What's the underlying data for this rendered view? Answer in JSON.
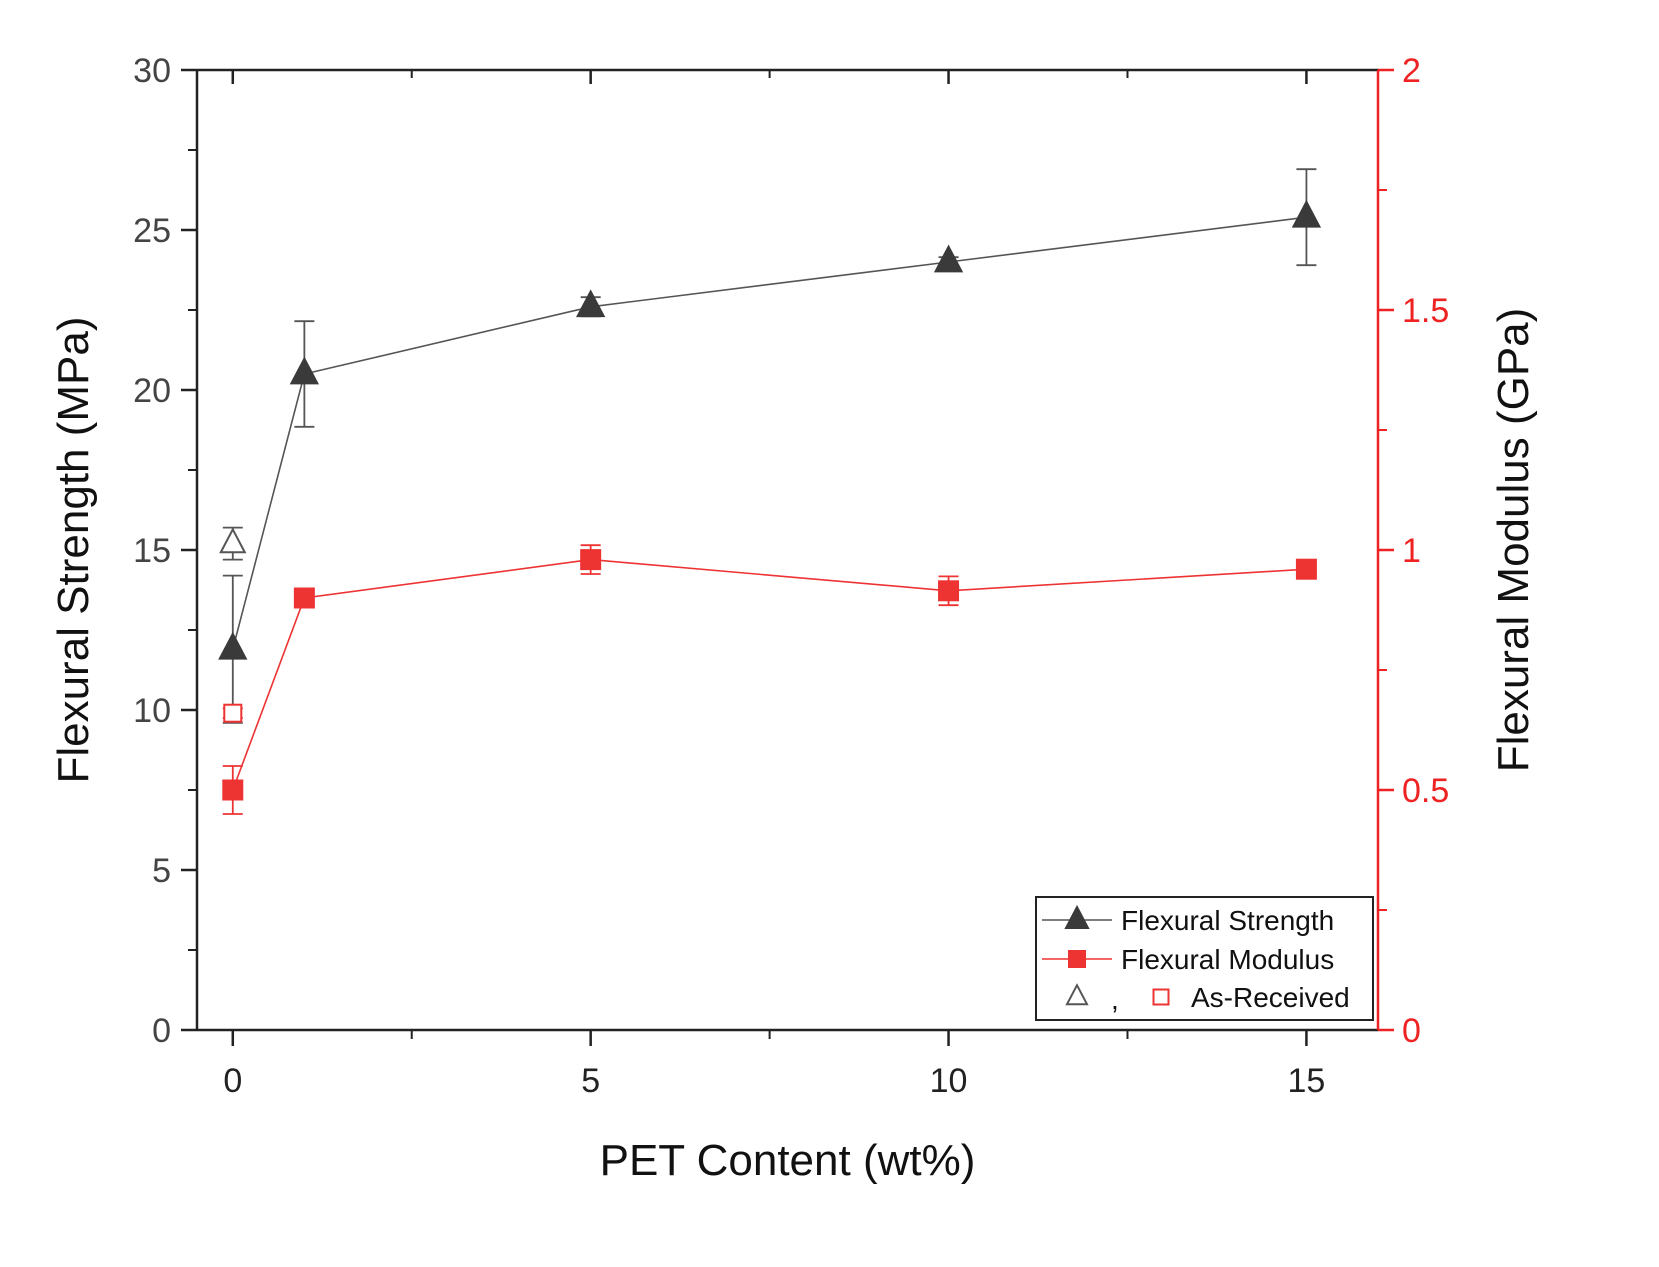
{
  "chart_data": {
    "type": "line",
    "title": "",
    "xlabel": "PET Content (wt%)",
    "ylabel_left": "Flexural Strength (MPa)",
    "ylabel_right": "Flexural Modulus (GPa)",
    "xlim": [
      -0.5,
      16
    ],
    "ylim_left": [
      0,
      30
    ],
    "ylim_right": [
      0,
      2
    ],
    "x_ticks": [
      0,
      5,
      10,
      15
    ],
    "x_tick_labels": [
      "0",
      "5",
      "10",
      "15"
    ],
    "x_minor_ticks": [
      2.5,
      7.5,
      12.5
    ],
    "y_left_ticks": [
      0,
      5,
      10,
      15,
      20,
      25,
      30
    ],
    "y_left_tick_labels": [
      "0",
      "5",
      "10",
      "15",
      "20",
      "25",
      "30"
    ],
    "y_right_ticks": [
      0,
      0.5,
      1,
      1.5,
      2
    ],
    "y_right_tick_labels": [
      "0",
      "0.5",
      "1",
      "1.5",
      "2"
    ],
    "series": [
      {
        "name": "Flexural Strength",
        "axis": "left",
        "marker": "triangle",
        "color": "#3a3a3a",
        "x": [
          0,
          1,
          5,
          10,
          15
        ],
        "y": [
          11.9,
          20.5,
          22.6,
          24.0,
          25.4
        ],
        "err": [
          2.3,
          1.65,
          0.3,
          0.15,
          1.5
        ]
      },
      {
        "name": "Flexural Modulus",
        "axis": "right",
        "marker": "square",
        "color": "#ee3333",
        "x": [
          0,
          1,
          5,
          10,
          15
        ],
        "y": [
          0.5,
          0.9,
          0.98,
          0.915,
          0.96
        ],
        "err": [
          0.05,
          0.02,
          0.03,
          0.03,
          0.01
        ]
      }
    ],
    "as_received": {
      "strength": {
        "x": 0,
        "y": 15.2,
        "err": 0.5
      },
      "modulus": {
        "x": 0,
        "y": 0.66,
        "err": 0.01
      }
    },
    "legend": {
      "position": "bottom-right",
      "entries": [
        "Flexural Strength",
        "Flexural Modulus"
      ],
      "as_received_separator": ",",
      "as_received_label": "As-Received"
    }
  },
  "colors": {
    "left_axis": "#444444",
    "right_axis": "#ee2222",
    "strength_marker": "#3a3a3a",
    "modulus_marker": "#ee3333"
  }
}
